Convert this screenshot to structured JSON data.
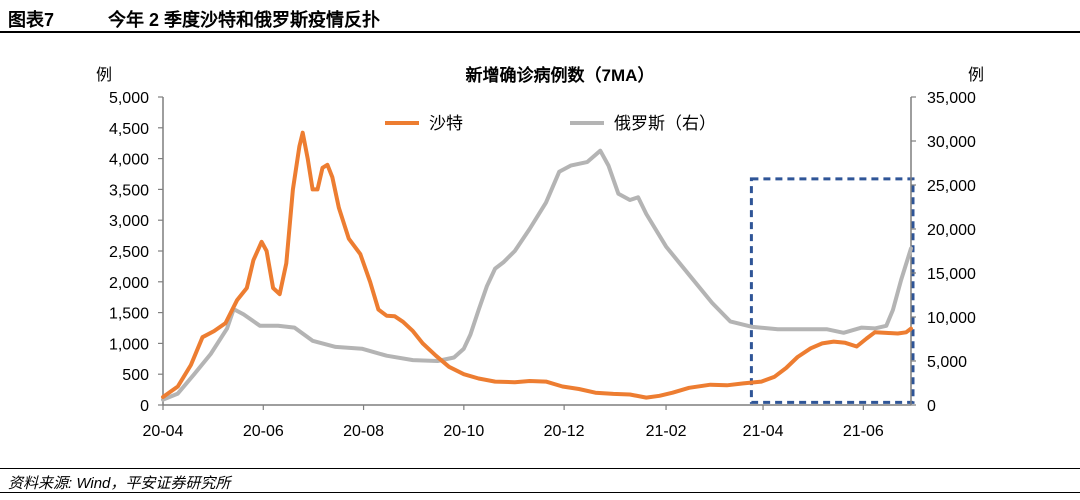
{
  "header": {
    "figure_no": "图表7",
    "title": "今年 2 季度沙特和俄罗斯疫情反扑"
  },
  "source": "资料来源: Wind，平安证券研究所",
  "colors": {
    "saudi": "#ED7D31",
    "russia": "#B4B4B4",
    "highlight": "#2F5597",
    "axis": "#7F7F7F"
  },
  "chart_data": {
    "type": "line",
    "title": "新增确诊病例数（7MA）",
    "ylabel_left": "例",
    "ylabel_right": "例",
    "legend_position": "top-center",
    "ylim_left": [
      0,
      5000
    ],
    "ylim_right": [
      0,
      35000
    ],
    "left_ticks": [
      "0",
      "500",
      "1,000",
      "1,500",
      "2,000",
      "2,500",
      "3,000",
      "3,500",
      "4,000",
      "4,500",
      "5,000"
    ],
    "right_ticks": [
      "0",
      "5,000",
      "10,000",
      "15,000",
      "20,000",
      "25,000",
      "30,000",
      "35,000"
    ],
    "x_tick_labels": [
      "20-04",
      "20-06",
      "20-08",
      "20-10",
      "20-12",
      "21-02",
      "21-04",
      "21-06"
    ],
    "x_tick_dates": [
      "2020-04-01",
      "2020-06-01",
      "2020-08-01",
      "2020-10-01",
      "2020-12-01",
      "2021-02-01",
      "2021-04-01",
      "2021-06-01"
    ],
    "x_range": [
      "2020-04-01",
      "2021-06-30"
    ],
    "series": [
      {
        "name": "沙特",
        "axis": "left",
        "color": "#ED7D31",
        "points": [
          [
            "2020-04-01",
            130
          ],
          [
            "2020-04-10",
            300
          ],
          [
            "2020-04-18",
            650
          ],
          [
            "2020-04-25",
            1100
          ],
          [
            "2020-05-02",
            1200
          ],
          [
            "2020-05-09",
            1330
          ],
          [
            "2020-05-16",
            1700
          ],
          [
            "2020-05-22",
            1900
          ],
          [
            "2020-05-26",
            2350
          ],
          [
            "2020-05-31",
            2650
          ],
          [
            "2020-06-03",
            2500
          ],
          [
            "2020-06-07",
            1900
          ],
          [
            "2020-06-11",
            1800
          ],
          [
            "2020-06-15",
            2300
          ],
          [
            "2020-06-19",
            3500
          ],
          [
            "2020-06-23",
            4200
          ],
          [
            "2020-06-25",
            4420
          ],
          [
            "2020-06-28",
            4000
          ],
          [
            "2020-07-01",
            3500
          ],
          [
            "2020-07-04",
            3500
          ],
          [
            "2020-07-07",
            3850
          ],
          [
            "2020-07-10",
            3900
          ],
          [
            "2020-07-13",
            3700
          ],
          [
            "2020-07-17",
            3200
          ],
          [
            "2020-07-23",
            2700
          ],
          [
            "2020-07-30",
            2450
          ],
          [
            "2020-08-05",
            2000
          ],
          [
            "2020-08-10",
            1550
          ],
          [
            "2020-08-15",
            1450
          ],
          [
            "2020-08-20",
            1440
          ],
          [
            "2020-08-25",
            1350
          ],
          [
            "2020-08-31",
            1200
          ],
          [
            "2020-09-06",
            1000
          ],
          [
            "2020-09-14",
            800
          ],
          [
            "2020-09-22",
            620
          ],
          [
            "2020-10-01",
            500
          ],
          [
            "2020-10-10",
            430
          ],
          [
            "2020-10-20",
            380
          ],
          [
            "2020-11-01",
            370
          ],
          [
            "2020-11-10",
            390
          ],
          [
            "2020-11-20",
            380
          ],
          [
            "2020-11-30",
            300
          ],
          [
            "2020-12-10",
            260
          ],
          [
            "2020-12-20",
            200
          ],
          [
            "2020-12-31",
            180
          ],
          [
            "2021-01-10",
            170
          ],
          [
            "2021-01-20",
            120
          ],
          [
            "2021-01-28",
            150
          ],
          [
            "2021-02-05",
            200
          ],
          [
            "2021-02-15",
            280
          ],
          [
            "2021-02-28",
            330
          ],
          [
            "2021-03-10",
            320
          ],
          [
            "2021-03-20",
            350
          ],
          [
            "2021-03-31",
            380
          ],
          [
            "2021-04-08",
            460
          ],
          [
            "2021-04-15",
            600
          ],
          [
            "2021-04-22",
            780
          ],
          [
            "2021-04-30",
            920
          ],
          [
            "2021-05-07",
            1000
          ],
          [
            "2021-05-14",
            1030
          ],
          [
            "2021-05-21",
            1010
          ],
          [
            "2021-05-28",
            950
          ],
          [
            "2021-06-03",
            1080
          ],
          [
            "2021-06-08",
            1180
          ],
          [
            "2021-06-15",
            1170
          ],
          [
            "2021-06-22",
            1160
          ],
          [
            "2021-06-27",
            1180
          ],
          [
            "2021-06-30",
            1240
          ]
        ]
      },
      {
        "name": "俄罗斯（右）",
        "axis": "right",
        "color": "#B4B4B4",
        "points": [
          [
            "2020-04-01",
            600
          ],
          [
            "2020-04-10",
            1300
          ],
          [
            "2020-04-20",
            3500
          ],
          [
            "2020-04-30",
            5800
          ],
          [
            "2020-05-10",
            8700
          ],
          [
            "2020-05-14",
            10900
          ],
          [
            "2020-05-20",
            10300
          ],
          [
            "2020-05-30",
            9000
          ],
          [
            "2020-06-10",
            9000
          ],
          [
            "2020-06-20",
            8800
          ],
          [
            "2020-07-01",
            7300
          ],
          [
            "2020-07-15",
            6600
          ],
          [
            "2020-07-31",
            6400
          ],
          [
            "2020-08-15",
            5600
          ],
          [
            "2020-08-31",
            5100
          ],
          [
            "2020-09-15",
            5000
          ],
          [
            "2020-09-25",
            5400
          ],
          [
            "2020-10-01",
            6400
          ],
          [
            "2020-10-05",
            8000
          ],
          [
            "2020-10-10",
            10800
          ],
          [
            "2020-10-15",
            13500
          ],
          [
            "2020-10-20",
            15500
          ],
          [
            "2020-10-25",
            16200
          ],
          [
            "2020-11-01",
            17500
          ],
          [
            "2020-11-10",
            20000
          ],
          [
            "2020-11-20",
            23000
          ],
          [
            "2020-11-28",
            26500
          ],
          [
            "2020-12-05",
            27200
          ],
          [
            "2020-12-15",
            27600
          ],
          [
            "2020-12-23",
            28900
          ],
          [
            "2020-12-28",
            27200
          ],
          [
            "2021-01-03",
            24000
          ],
          [
            "2021-01-10",
            23300
          ],
          [
            "2021-01-15",
            23600
          ],
          [
            "2021-01-20",
            21700
          ],
          [
            "2021-02-01",
            18000
          ],
          [
            "2021-02-15",
            14800
          ],
          [
            "2021-03-01",
            11600
          ],
          [
            "2021-03-12",
            9500
          ],
          [
            "2021-03-25",
            8900
          ],
          [
            "2021-04-10",
            8600
          ],
          [
            "2021-04-30",
            8600
          ],
          [
            "2021-05-10",
            8600
          ],
          [
            "2021-05-20",
            8200
          ],
          [
            "2021-05-31",
            8800
          ],
          [
            "2021-06-08",
            8700
          ],
          [
            "2021-06-15",
            9000
          ],
          [
            "2021-06-19",
            10800
          ],
          [
            "2021-06-24",
            14200
          ],
          [
            "2021-06-30",
            17800
          ]
        ]
      }
    ],
    "highlight_box": {
      "x": [
        "2021-03-31",
        "2021-06-30"
      ],
      "y_right": [
        300,
        25700
      ]
    }
  }
}
